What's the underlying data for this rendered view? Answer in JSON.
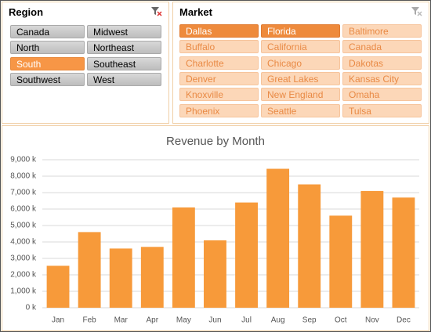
{
  "region_slicer": {
    "title": "Region",
    "items": [
      {
        "label": "Canada",
        "selected": false
      },
      {
        "label": "Midwest",
        "selected": false
      },
      {
        "label": "North",
        "selected": false
      },
      {
        "label": "Northeast",
        "selected": false
      },
      {
        "label": "South",
        "selected": true
      },
      {
        "label": "Southeast",
        "selected": false
      },
      {
        "label": "Southwest",
        "selected": false
      },
      {
        "label": "West",
        "selected": false
      }
    ]
  },
  "market_slicer": {
    "title": "Market",
    "items": [
      {
        "label": "Dallas",
        "selected": true
      },
      {
        "label": "Florida",
        "selected": true
      },
      {
        "label": "Baltimore",
        "selected": false
      },
      {
        "label": "Buffalo",
        "selected": false
      },
      {
        "label": "California",
        "selected": false
      },
      {
        "label": "Canada",
        "selected": false
      },
      {
        "label": "Charlotte",
        "selected": false
      },
      {
        "label": "Chicago",
        "selected": false
      },
      {
        "label": "Dakotas",
        "selected": false
      },
      {
        "label": "Denver",
        "selected": false
      },
      {
        "label": "Great Lakes",
        "selected": false
      },
      {
        "label": "Kansas City",
        "selected": false
      },
      {
        "label": "Knoxville",
        "selected": false
      },
      {
        "label": "New England",
        "selected": false
      },
      {
        "label": "Omaha",
        "selected": false
      },
      {
        "label": "Phoenix",
        "selected": false
      },
      {
        "label": "Seattle",
        "selected": false
      },
      {
        "label": "Tulsa",
        "selected": false
      }
    ]
  },
  "chart_data": {
    "type": "bar",
    "title": "Revenue by Month",
    "categories": [
      "Jan",
      "Feb",
      "Mar",
      "Apr",
      "May",
      "Jun",
      "Jul",
      "Aug",
      "Sep",
      "Oct",
      "Nov",
      "Dec"
    ],
    "values": [
      2550,
      4600,
      3600,
      3700,
      6100,
      4100,
      6400,
      8450,
      7500,
      5600,
      7100,
      6700
    ],
    "color": "#f79a3a",
    "ylim": [
      0,
      9000
    ],
    "yticks": [
      {
        "value": 0,
        "label": "0 k"
      },
      {
        "value": 1000,
        "label": "1,000 k"
      },
      {
        "value": 2000,
        "label": "2,000 k"
      },
      {
        "value": 3000,
        "label": "3,000 k"
      },
      {
        "value": 4000,
        "label": "4,000 k"
      },
      {
        "value": 5000,
        "label": "5,000 k"
      },
      {
        "value": 6000,
        "label": "6,000 k"
      },
      {
        "value": 7000,
        "label": "7,000 k"
      },
      {
        "value": 8000,
        "label": "8,000 k"
      },
      {
        "value": 9000,
        "label": "9,000 k"
      }
    ],
    "grid": true
  }
}
